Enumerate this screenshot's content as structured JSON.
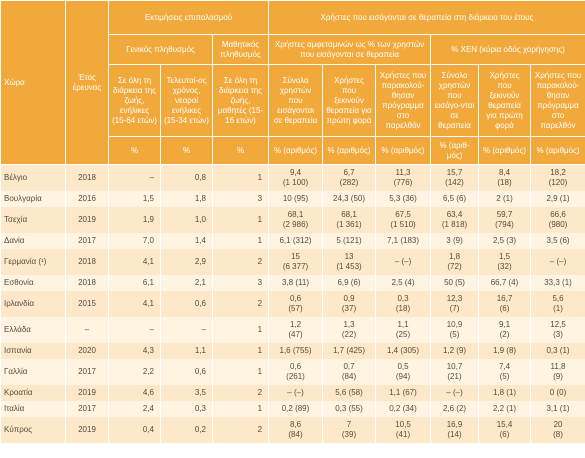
{
  "header": {
    "country": "Χώρα",
    "year": "Έτος έρευνας",
    "group_prevalence": "Εκτιμήσεις επιπολασμού",
    "group_treatment": "Χρήστες που εισάγονται σε θεραπεία στη διάρκεια του έτους",
    "subgroups": [
      "Γενικός πληθυσμός",
      "Μαθητικός πληθυσμός",
      "Χρήστες αμφεταμινών ως % των χρηστών που εισάγονται σε θεραπεία",
      "% ΧΕΝ (κύρια οδός χορήγησης)"
    ],
    "columns": [
      "Σε όλη τη διάρκεια της ζωής, ενήλικες (15-64 ετών)",
      "Τελευταί-ος χρόνος, νεαροί ενήλικες (15-34 ετών)",
      "Σε όλη τη διάρκεια της ζωής, μαθητές (15-16 ετών)",
      "Σύνολο χρηστών που εισάγονται σε θεραπεία",
      "Χρήστες που ξεκινούν θεραπεία για πρώτη φορά",
      "Χρήστες που παρακολού-θησαν πρόγραμμα στο παρελθόν",
      "Σύνολο χρηστών που εισάγο-νται σε θεραπεία",
      "Χρήστες που ξεκινούν θεραπεία για πρώτη φορά",
      "Χρήστες που παρακολού-θησαν πρόγραμμα στο παρελθόν"
    ],
    "units": [
      "%",
      "%",
      "%",
      "% (αριθμός)",
      "% (αριθμός)",
      "% (αριθμός)",
      "% (αριθ-μός)",
      "% (αριθμός)",
      "% (αριθμός)"
    ]
  },
  "rows": [
    {
      "country": "Βέλγιο",
      "year": "2018",
      "cells": [
        "–",
        "0,8",
        "1",
        [
          "9,4",
          "(1 100)"
        ],
        [
          "6,7",
          "(282)"
        ],
        [
          "11,3",
          "(776)"
        ],
        [
          "15,7",
          "(142)"
        ],
        [
          "8,4",
          "(18)"
        ],
        [
          "18,2",
          "(120)"
        ]
      ]
    },
    {
      "country": "Βουλγαρία",
      "year": "2016",
      "cells": [
        "1,5",
        "1,8",
        "3",
        "10 (95)",
        "24,3 (50)",
        "5,3 (36)",
        "6,5 (6)",
        "2 (1)",
        "2,9 (1)"
      ]
    },
    {
      "country": "Τσεχία",
      "year": "2019",
      "cells": [
        "1,9",
        "1,0",
        "1",
        [
          "68,1",
          "(2 986)"
        ],
        [
          "68,1",
          "(1 361)"
        ],
        [
          "67,5",
          "(1 510)"
        ],
        [
          "63,4",
          "(1 818)"
        ],
        [
          "59,7",
          "(794)"
        ],
        [
          "66,6",
          "(980)"
        ]
      ]
    },
    {
      "country": "Δανία",
      "year": "2017",
      "cells": [
        "7,0",
        "1,4",
        "1",
        "6,1 (312)",
        "5 (121)",
        "7,1 (183)",
        "3 (9)",
        "2,5 (3)",
        "3,5 (6)"
      ]
    },
    {
      "country": "Γερμανία (¹)",
      "year": "2018",
      "cells": [
        "4,1",
        "2,9",
        "2",
        [
          "15",
          "(6 377)"
        ],
        [
          "13",
          "(1 453)"
        ],
        "– (–)",
        [
          "1,8",
          "(72)"
        ],
        [
          "1,5",
          "(32)"
        ],
        "– (–)"
      ]
    },
    {
      "country": "Εσθονία",
      "year": "2018",
      "cells": [
        "6,1",
        "2,1",
        "3",
        "3,8 (11)",
        "6,9 (6)",
        "2,5 (4)",
        "50 (5)",
        "66,7 (4)",
        "33,3 (1)"
      ]
    },
    {
      "country": "Ιρλανδία",
      "year": "2015",
      "cells": [
        "4,1",
        "0,6",
        "2",
        [
          "0,6",
          "(57)"
        ],
        [
          "0,9",
          "(37)"
        ],
        [
          "0,3",
          "(18)"
        ],
        [
          "12,3",
          "(7)"
        ],
        [
          "16,7",
          "(6)"
        ],
        [
          "5,6",
          "(1)"
        ]
      ]
    },
    {
      "country": "Ελλάδα",
      "year": "–",
      "cells": [
        "–",
        "–",
        "1",
        [
          "1,2",
          "(47)"
        ],
        [
          "1,3",
          "(22)"
        ],
        [
          "1,1",
          "(25)"
        ],
        [
          "10,9",
          "(5)"
        ],
        [
          "9,1",
          "(2)"
        ],
        [
          "12,5",
          "(3)"
        ]
      ]
    },
    {
      "country": "Ισπανία",
      "year": "2020",
      "cells": [
        "4,3",
        "1,1",
        "1",
        "1,6 (755)",
        "1,7 (425)",
        "1,4 (305)",
        "1,2 (9)",
        "1,9 (8)",
        "0,3 (1)"
      ]
    },
    {
      "country": "Γαλλία",
      "year": "2017",
      "cells": [
        "2,2",
        "0,6",
        "1",
        [
          "0,6",
          "(261)"
        ],
        [
          "0,7",
          "(84)"
        ],
        [
          "0,5",
          "(94)"
        ],
        [
          "10,7",
          "(21)"
        ],
        [
          "7,4",
          "(5)"
        ],
        [
          "11,8",
          "(9)"
        ]
      ]
    },
    {
      "country": "Κροατία",
      "year": "2019",
      "cells": [
        "4,6",
        "3,5",
        "2",
        "– (–)",
        "5,6 (58)",
        "1,1 (67)",
        "– (–)",
        "1,8 (1)",
        "0 (0)"
      ]
    },
    {
      "country": "Ιταλία",
      "year": "2017",
      "cells": [
        "2,4",
        "0,3",
        "1",
        "0,2 (89)",
        "0,3 (55)",
        "0,2 (34)",
        "2,6 (2)",
        "2,2 (1)",
        "3,1 (1)"
      ]
    },
    {
      "country": "Κύπρος",
      "year": "2019",
      "cells": [
        "0,4",
        "0,2",
        "2",
        [
          "8,6",
          "(84)"
        ],
        [
          "7",
          "(39)"
        ],
        [
          "10,5",
          "(41)"
        ],
        [
          "16,9",
          "(14)"
        ],
        [
          "15,4",
          "(6)"
        ],
        [
          "20",
          "(8)"
        ]
      ]
    }
  ]
}
